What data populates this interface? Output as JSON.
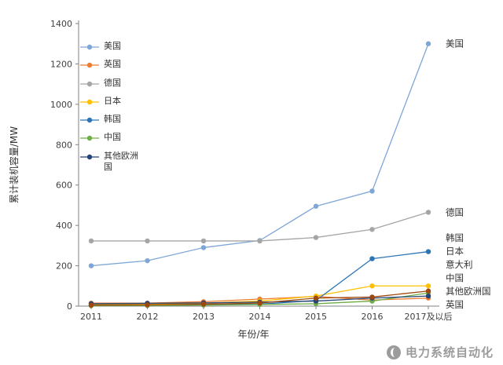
{
  "chart_data": {
    "type": "line",
    "title": "",
    "xlabel": "年份/年",
    "ylabel": "累计装机容量/MW",
    "ylim": [
      0,
      1400
    ],
    "ytick_step": 200,
    "grid": false,
    "legend_position": "upper-left-inside",
    "categories": [
      "2011",
      "2012",
      "2013",
      "2014",
      "2015",
      "2016",
      "2017及以后"
    ],
    "series": [
      {
        "name": "美国",
        "color": "#7EA6D6",
        "in_legend": true,
        "values": [
          200,
          225,
          290,
          325,
          495,
          570,
          1300
        ]
      },
      {
        "name": "英国",
        "color": "#ED7D31",
        "in_legend": true,
        "values": [
          15,
          15,
          22,
          35,
          48,
          30,
          40
        ]
      },
      {
        "name": "德国",
        "color": "#A5A5A5",
        "in_legend": true,
        "values": [
          323,
          323,
          323,
          323,
          340,
          380,
          465
        ]
      },
      {
        "name": "日本",
        "color": "#FFC000",
        "in_legend": true,
        "values": [
          8,
          10,
          15,
          25,
          50,
          100,
          100
        ]
      },
      {
        "name": "韩国",
        "color": "#2E75B6",
        "in_legend": true,
        "values": [
          5,
          6,
          8,
          10,
          28,
          235,
          270
        ]
      },
      {
        "name": "中国",
        "color": "#70AD47",
        "in_legend": true,
        "values": [
          2,
          3,
          5,
          8,
          12,
          25,
          65
        ]
      },
      {
        "name": "其他欧洲国",
        "color": "#264478",
        "in_legend": true,
        "values": [
          12,
          14,
          16,
          20,
          25,
          40,
          50
        ]
      },
      {
        "name": "意大利",
        "color": "#9E480E",
        "in_legend": false,
        "values": [
          5,
          6,
          10,
          15,
          40,
          45,
          75
        ]
      }
    ],
    "end_labels": [
      "美国",
      "德国",
      "韩国",
      "日本",
      "意大利",
      "中国",
      "其他欧洲国",
      "英国"
    ]
  },
  "watermark": {
    "text": "电力系统自动化",
    "icon": "power-systems-logo-icon"
  }
}
